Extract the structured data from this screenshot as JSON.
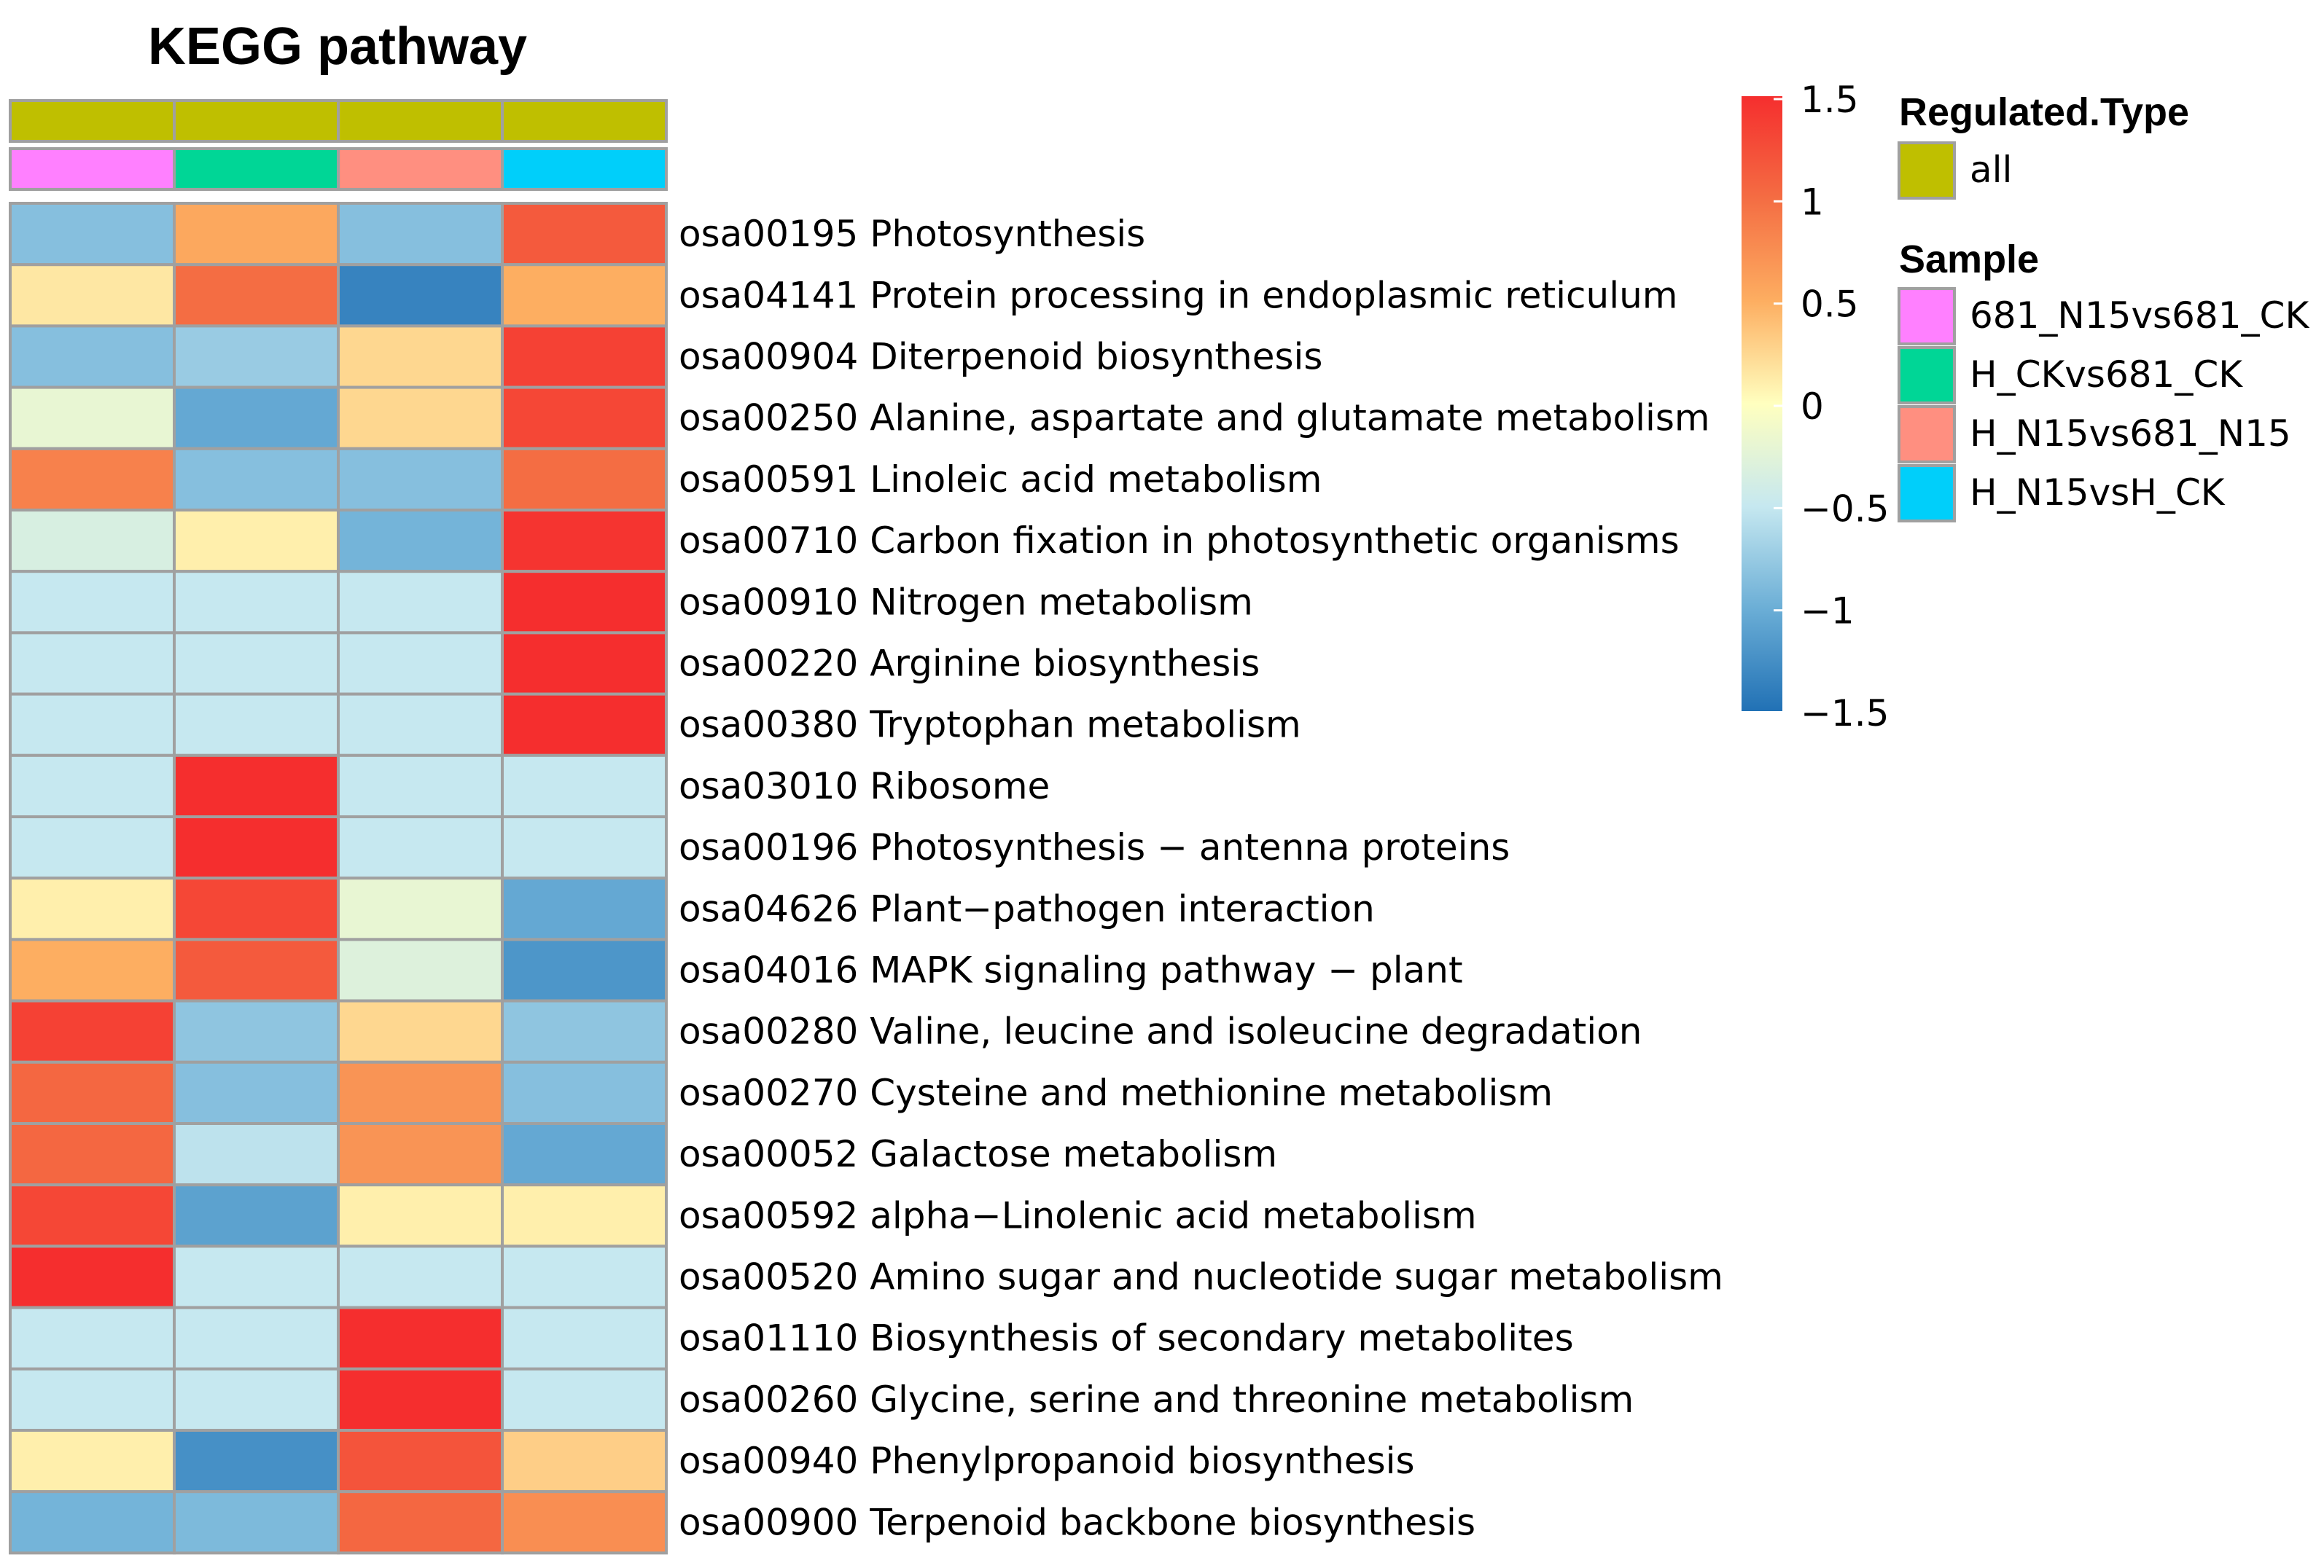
{
  "chart_data": {
    "type": "heatmap",
    "title": "KEGG pathway",
    "columns": [
      "681_N15vs681_CK",
      "H_CKvs681_CK",
      "H_N15vs681_N15",
      "H_N15vsH_CK"
    ],
    "column_annotations": {
      "regulated_type": [
        "all",
        "all",
        "all",
        "all"
      ],
      "sample": [
        "681_N15vs681_CK",
        "H_CKvs681_CK",
        "H_N15vs681_N15",
        "H_N15vsH_CK"
      ]
    },
    "rows": [
      "osa00195 Photosynthesis",
      "osa04141 Protein processing in endoplasmic reticulum",
      "osa00904 Diterpenoid biosynthesis",
      "osa00250 Alanine, aspartate and glutamate metabolism",
      "osa00591 Linoleic acid metabolism",
      "osa00710 Carbon fixation in photosynthetic organisms",
      "osa00910 Nitrogen metabolism",
      "osa00220 Arginine biosynthesis",
      "osa00380 Tryptophan metabolism",
      "osa03010 Ribosome",
      "osa00196 Photosynthesis − antenna proteins",
      "osa04626 Plant−pathogen interaction",
      "osa04016 MAPK signaling pathway − plant",
      "osa00280 Valine, leucine and isoleucine degradation",
      "osa00270 Cysteine and methionine metabolism",
      "osa00052 Galactose metabolism",
      "osa00592 alpha−Linolenic acid metabolism",
      "osa00520 Amino sugar and nucleotide sugar metabolism",
      "osa01110 Biosynthesis of secondary metabolites",
      "osa00260 Glycine, serine and threonine metabolism",
      "osa00940 Phenylpropanoid biosynthesis",
      "osa00900 Terpenoid backbone biosynthesis"
    ],
    "values": [
      [
        -0.85,
        0.55,
        -0.85,
        1.15
      ],
      [
        0.15,
        1.0,
        -1.35,
        0.5
      ],
      [
        -0.85,
        -0.75,
        0.25,
        1.35
      ],
      [
        -0.2,
        -1.05,
        0.25,
        1.3
      ],
      [
        0.85,
        -0.85,
        -0.85,
        1.0
      ],
      [
        -0.35,
        0.1,
        -0.95,
        1.45
      ],
      [
        -0.5,
        -0.5,
        -0.5,
        1.5
      ],
      [
        -0.5,
        -0.5,
        -0.5,
        1.5
      ],
      [
        -0.5,
        -0.5,
        -0.5,
        1.5
      ],
      [
        -0.5,
        1.5,
        -0.5,
        -0.5
      ],
      [
        -0.5,
        1.5,
        -0.5,
        -0.5
      ],
      [
        0.1,
        1.3,
        -0.2,
        -1.05
      ],
      [
        0.5,
        1.15,
        -0.3,
        -1.2
      ],
      [
        1.35,
        -0.8,
        0.25,
        -0.8
      ],
      [
        1.05,
        -0.85,
        0.7,
        -0.85
      ],
      [
        1.05,
        -0.55,
        0.7,
        -1.05
      ],
      [
        1.3,
        -1.1,
        0.1,
        0.1
      ],
      [
        1.5,
        -0.5,
        -0.5,
        -0.5
      ],
      [
        -0.5,
        -0.5,
        1.5,
        -0.5
      ],
      [
        -0.5,
        -0.5,
        1.5,
        -0.5
      ],
      [
        0.1,
        -1.25,
        1.2,
        0.3
      ],
      [
        -0.95,
        -0.9,
        1.05,
        0.75
      ]
    ],
    "color_scale": {
      "min": -1.5,
      "max": 1.5,
      "ticks": [
        1.5,
        1,
        0.5,
        0,
        -0.5,
        -1,
        -1.5
      ],
      "tick_labels": [
        "1.5",
        "1",
        "0.5",
        "0",
        "−0.5",
        "−1",
        "−1.5"
      ],
      "colors": [
        "#2171b5",
        "#6baed6",
        "#c6e8f0",
        "#ffffbf",
        "#fdae61",
        "#f46d43",
        "#f52e2e"
      ]
    },
    "legend": {
      "regulated_type_title": "Regulated.Type",
      "regulated_type_items": [
        {
          "label": "all",
          "color": "#bfbf00"
        }
      ],
      "sample_title": "Sample",
      "sample_items": [
        {
          "label": "681_N15vs681_CK",
          "color": "#ff80ff"
        },
        {
          "label": "H_CKvs681_CK",
          "color": "#00d696"
        },
        {
          "label": "H_N15vs681_N15",
          "color": "#ff8f80"
        },
        {
          "label": "H_N15vsH_CK",
          "color": "#00cffa"
        }
      ]
    }
  }
}
